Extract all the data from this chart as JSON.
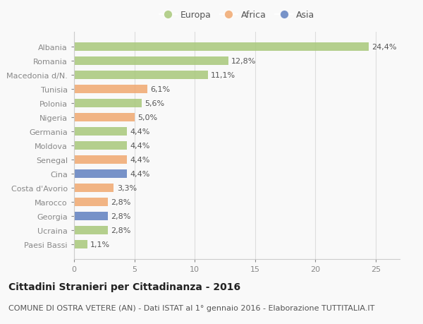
{
  "countries": [
    "Albania",
    "Romania",
    "Macedonia d/N.",
    "Tunisia",
    "Polonia",
    "Nigeria",
    "Germania",
    "Moldova",
    "Senegal",
    "Cina",
    "Costa d'Avorio",
    "Marocco",
    "Georgia",
    "Ucraina",
    "Paesi Bassi"
  ],
  "values": [
    24.4,
    12.8,
    11.1,
    6.1,
    5.6,
    5.0,
    4.4,
    4.4,
    4.4,
    4.4,
    3.3,
    2.8,
    2.8,
    2.8,
    1.1
  ],
  "labels": [
    "24,4%",
    "12,8%",
    "11,1%",
    "6,1%",
    "5,6%",
    "5,0%",
    "4,4%",
    "4,4%",
    "4,4%",
    "4,4%",
    "3,3%",
    "2,8%",
    "2,8%",
    "2,8%",
    "1,1%"
  ],
  "continents": [
    "Europa",
    "Europa",
    "Europa",
    "Africa",
    "Europa",
    "Africa",
    "Europa",
    "Europa",
    "Africa",
    "Asia",
    "Africa",
    "Africa",
    "Asia",
    "Europa",
    "Europa"
  ],
  "colors": {
    "Europa": "#a8c87a",
    "Africa": "#f0a870",
    "Asia": "#6080c0"
  },
  "title": "Cittadini Stranieri per Cittadinanza - 2016",
  "subtitle": "COMUNE DI OSTRA VETERE (AN) - Dati ISTAT al 1° gennaio 2016 - Elaborazione TUTTITALIA.IT",
  "xlim": [
    0,
    27
  ],
  "xticks": [
    0,
    5,
    10,
    15,
    20,
    25
  ],
  "background_color": "#f9f9f9",
  "title_fontsize": 10,
  "subtitle_fontsize": 8,
  "label_fontsize": 8,
  "tick_fontsize": 8,
  "legend_fontsize": 9
}
